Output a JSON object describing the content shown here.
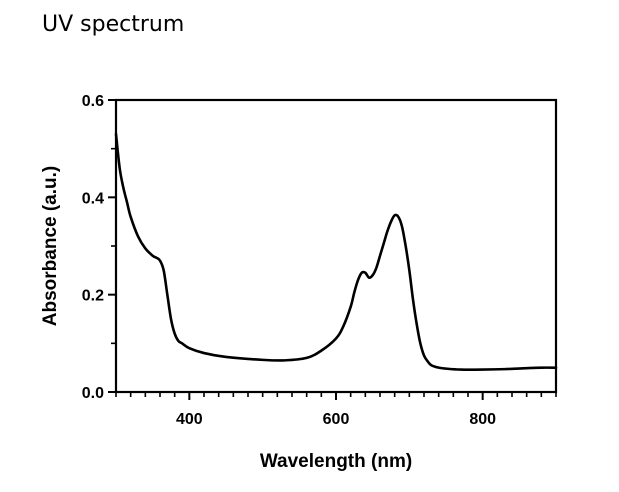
{
  "page": {
    "title": "UV spectrum"
  },
  "chart_data": {
    "type": "line",
    "title": "UV spectrum",
    "xlabel": "Wavelength (nm)",
    "ylabel": "Absorbance (a.u.)",
    "xlim": [
      300,
      900
    ],
    "ylim": [
      0.0,
      0.6
    ],
    "x_ticks": [
      400,
      600,
      800
    ],
    "x_tick_labels": [
      "400",
      "600",
      "800"
    ],
    "y_ticks": [
      0.0,
      0.2,
      0.4,
      0.6
    ],
    "y_tick_labels": [
      "0.0",
      "0.2",
      "0.4",
      "0.6"
    ],
    "grid": false,
    "line_color": "#000000",
    "series": [
      {
        "x": [
          300,
          305,
          310,
          315,
          320,
          330,
          340,
          350,
          355,
          360,
          365,
          370,
          375,
          380,
          385,
          390,
          400,
          420,
          450,
          500,
          530,
          560,
          580,
          600,
          610,
          620,
          625,
          630,
          635,
          640,
          645,
          650,
          655,
          660,
          665,
          670,
          675,
          680,
          685,
          690,
          695,
          700,
          705,
          710,
          715,
          720,
          725,
          730,
          740,
          750,
          770,
          800,
          830,
          860,
          880,
          900
        ],
        "y": [
          0.53,
          0.46,
          0.42,
          0.39,
          0.36,
          0.32,
          0.295,
          0.28,
          0.276,
          0.27,
          0.25,
          0.2,
          0.15,
          0.12,
          0.105,
          0.1,
          0.09,
          0.08,
          0.072,
          0.066,
          0.065,
          0.07,
          0.085,
          0.11,
          0.135,
          0.175,
          0.205,
          0.23,
          0.245,
          0.245,
          0.235,
          0.24,
          0.255,
          0.28,
          0.305,
          0.33,
          0.35,
          0.363,
          0.36,
          0.34,
          0.3,
          0.25,
          0.19,
          0.14,
          0.1,
          0.075,
          0.063,
          0.055,
          0.05,
          0.048,
          0.046,
          0.046,
          0.047,
          0.049,
          0.05,
          0.05
        ]
      }
    ]
  }
}
